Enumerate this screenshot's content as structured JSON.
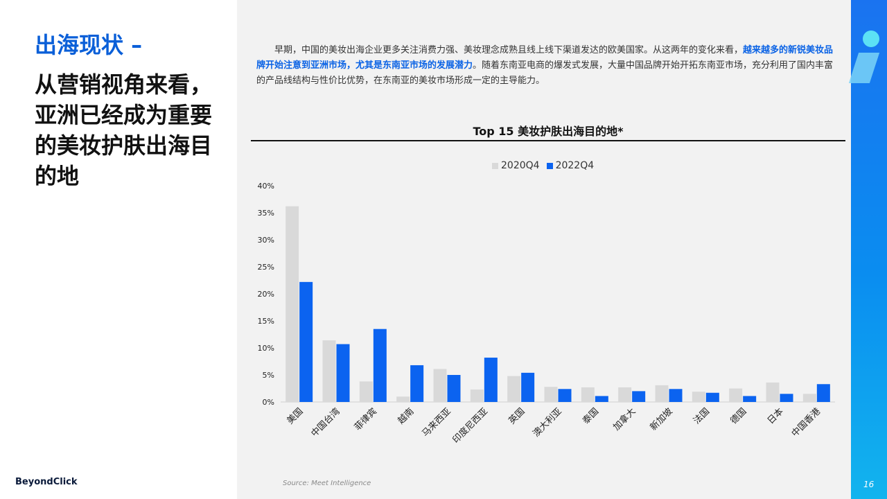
{
  "section_title": "出海现状 –",
  "headline": "从营销视角来看，亚洲已经成为重要的美妆护肤出海目的地",
  "paragraph": {
    "part1": "早期，中国的美妆出海企业更多关注消费力强、美妆理念成熟且线上线下渠道发达的欧美国家。从这两年的变化来看，",
    "highlight": "越来越多的新锐美妆品牌开始注意到亚洲市场，尤其是东南亚市场的发展潜力",
    "part2": "。随着东南亚电商的爆发式发展，大量中国品牌开始开拓东南亚市场，充分利用了国内丰富的产品线结构与性价比优势，在东南亚的美妆市场形成一定的主导能力。"
  },
  "logo": "BeyondClick",
  "source": "Source: Meet Intelligence",
  "page_number": "16",
  "colors": {
    "series_2020": "#d9d9d9",
    "series_2022": "#0b63f0",
    "brand": "#0a5fd8"
  },
  "chart_data": {
    "type": "bar",
    "title": "Top 15 美妆护肤出海目的地*",
    "categories": [
      "美国",
      "中国台湾",
      "菲律宾",
      "越南",
      "马来西亚",
      "印度尼西亚",
      "英国",
      "澳大利亚",
      "泰国",
      "加拿大",
      "新加坡",
      "法国",
      "德国",
      "日本",
      "中国香港"
    ],
    "series": [
      {
        "name": "2020Q4",
        "values": [
          36.2,
          11.4,
          3.8,
          1.0,
          6.1,
          2.3,
          4.8,
          2.8,
          2.7,
          2.7,
          3.1,
          1.9,
          2.5,
          3.6,
          1.5
        ]
      },
      {
        "name": "2022Q4",
        "values": [
          22.2,
          10.7,
          13.5,
          6.8,
          5.0,
          8.2,
          5.4,
          2.4,
          1.1,
          2.0,
          2.4,
          1.7,
          1.1,
          1.5,
          3.3
        ]
      }
    ],
    "ylim": [
      0,
      40
    ],
    "yticks": [
      "0%",
      "5%",
      "10%",
      "15%",
      "20%",
      "25%",
      "30%",
      "35%",
      "40%"
    ],
    "xlabel": "",
    "ylabel": "",
    "legend_position": "top-center"
  }
}
